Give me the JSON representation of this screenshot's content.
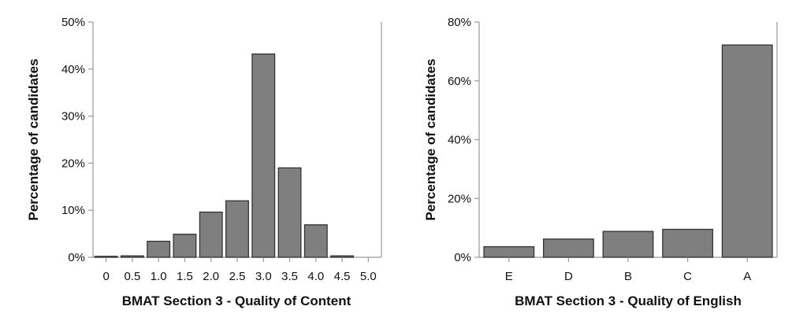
{
  "chart_data": [
    {
      "type": "bar",
      "xlabel": "BMAT Section 3 - Quality of Content",
      "ylabel": "Percentage of candidates",
      "categories": [
        "0",
        "0.5",
        "1.0",
        "1.5",
        "2.0",
        "2.5",
        "3.0",
        "3.5",
        "4.0",
        "4.5",
        "5.0"
      ],
      "values": [
        0.2,
        0.3,
        3.4,
        4.9,
        9.6,
        12.0,
        43.2,
        19.0,
        6.9,
        0.3,
        0.0
      ],
      "ylim": [
        0,
        50
      ],
      "yticks": [
        "0%",
        "10%",
        "20%",
        "30%",
        "40%",
        "50%"
      ],
      "grid": false,
      "bar_color": "#7f7f7f"
    },
    {
      "type": "bar",
      "xlabel": "BMAT Section 3 - Quality of English",
      "ylabel": "Percentage of candidates",
      "categories": [
        "E",
        "D",
        "B",
        "C",
        "A"
      ],
      "values": [
        3.6,
        6.2,
        8.8,
        9.5,
        72.2
      ],
      "ylim": [
        0,
        80
      ],
      "yticks": [
        "0%",
        "20%",
        "40%",
        "60%",
        "80%"
      ],
      "grid": false,
      "bar_color": "#7f7f7f"
    }
  ]
}
